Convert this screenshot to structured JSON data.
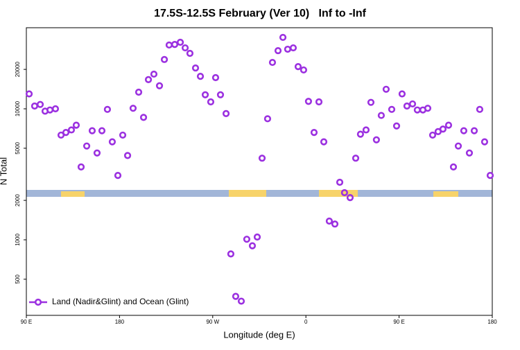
{
  "chart_data": {
    "type": "scatter",
    "title": "17.5S-12.5S February (Ver 10)   Inf to -Inf",
    "x_label": "Longitude (deg E)",
    "y_label": "N Total",
    "xlim": [
      90,
      540
    ],
    "xticks": [
      {
        "value": 90,
        "label": "90 E"
      },
      180,
      {
        "value": 270,
        "label": "90 W"
      },
      {
        "value": 360,
        "label": "0"
      },
      {
        "value": 450,
        "label": "90 E"
      },
      {
        "value": 540,
        "label": "180"
      }
    ],
    "ylim": [
      265,
      41600
    ],
    "yticks": [
      500,
      1000,
      2000,
      5000,
      10000,
      20000
    ],
    "y_log": true,
    "grid": false,
    "legend": "bottom left",
    "x": [
      92.7,
      98.0,
      103.4,
      108.1,
      112.8,
      118.1,
      123.5,
      128.2,
      133.5,
      138.2,
      142.9,
      148.3,
      153.6,
      158.3,
      163.0,
      168.3,
      173.0,
      178.4,
      183.1,
      187.8,
      193.1,
      198.5,
      203.2,
      207.9,
      213.2,
      218.6,
      223.3,
      227.9,
      233.3,
      238.7,
      243.4,
      248.0,
      253.4,
      258.1,
      262.8,
      268.1,
      272.8,
      277.5,
      282.9,
      287.5,
      292.2,
      297.6,
      302.9,
      308.3,
      313.0,
      317.7,
      323.0,
      327.7,
      333.1,
      337.8,
      342.4,
      347.8,
      352.5,
      357.8,
      362.5,
      367.9,
      372.6,
      377.3,
      382.6,
      388.0,
      392.7,
      397.3,
      402.7,
      408.1,
      412.7,
      418.1,
      422.8,
      428.1,
      432.8,
      437.5,
      442.9,
      447.6,
      452.9,
      457.6,
      463.0,
      467.6,
      473.0,
      477.7,
      482.4,
      487.7,
      492.4,
      497.8,
      502.5,
      507.2,
      512.5,
      517.9,
      522.6,
      527.9,
      532.6,
      538.0
    ],
    "series": [
      {
        "name": "Land (Nadir&Glint) and Ocean (Glint)",
        "color": "#9b30e0",
        "values": [
          13000,
          10500,
          10800,
          9600,
          9800,
          10000,
          6300,
          6600,
          6900,
          7500,
          3600,
          5200,
          6800,
          4600,
          6800,
          9900,
          5600,
          3100,
          6300,
          4400,
          10100,
          13400,
          8600,
          16700,
          18400,
          15000,
          23800,
          30700,
          31000,
          32200,
          29200,
          26500,
          20500,
          17700,
          12800,
          11300,
          17300,
          12800,
          9200,
          780,
          370,
          340,
          1010,
          900,
          1050,
          4200,
          8400,
          22600,
          27800,
          35100,
          28500,
          29200,
          21000,
          19800,
          11400,
          6600,
          11300,
          5600,
          1390,
          1320,
          2750,
          2290,
          2100,
          4200,
          6400,
          6900,
          11200,
          5800,
          8900,
          14100,
          9900,
          7400,
          13000,
          10500,
          10900,
          9800,
          9800,
          10100,
          6300,
          6700,
          7000,
          7500,
          3600,
          5200,
          6800,
          4600,
          6800,
          9900,
          5600,
          3100
        ]
      }
    ]
  }
}
